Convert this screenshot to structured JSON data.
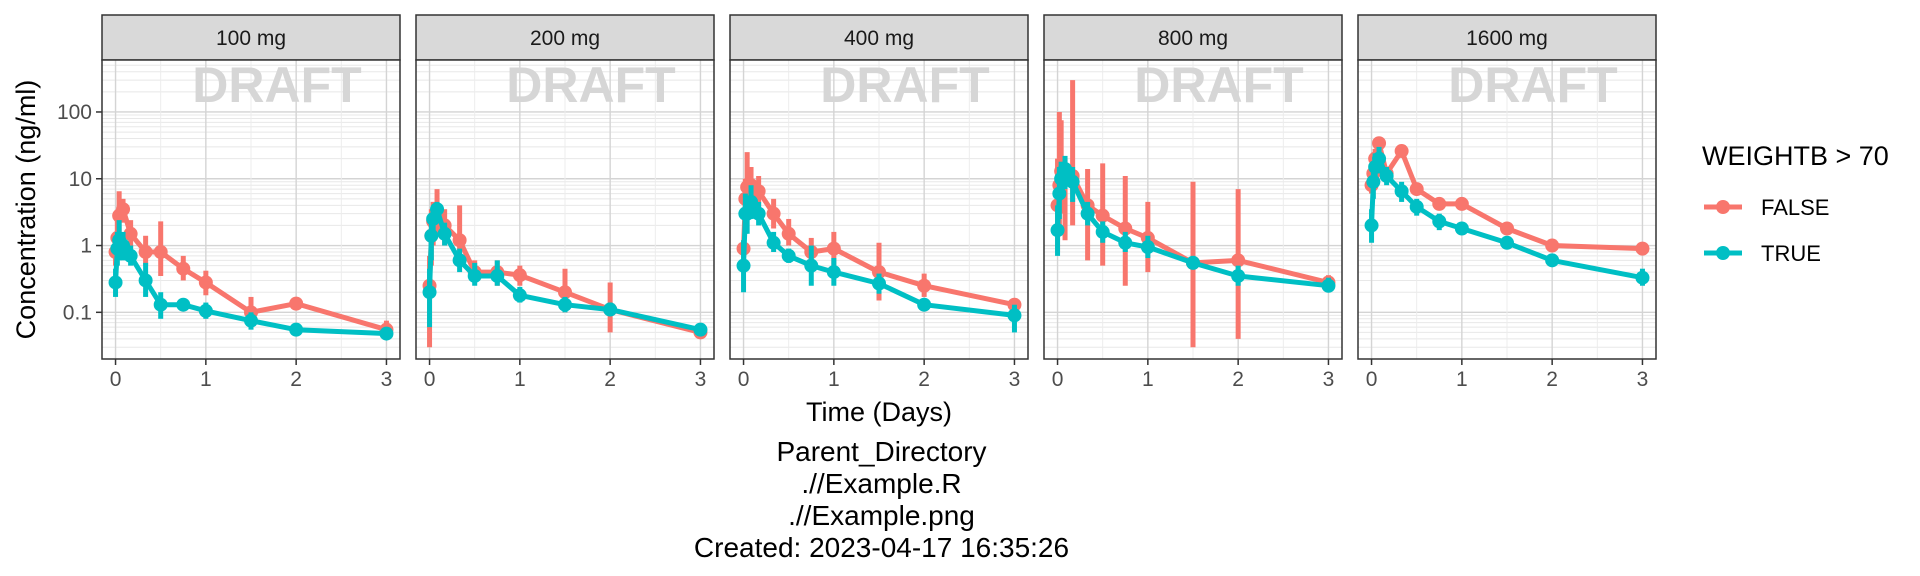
{
  "chart_data": {
    "type": "line",
    "facet_by": "dose",
    "facets": [
      "100 mg",
      "200 mg",
      "400 mg",
      "800 mg",
      "1600 mg"
    ],
    "xlabel": "Time (Days)",
    "ylabel": "Concentration (ng/ml)",
    "x_scale": "linear",
    "y_scale": "log10",
    "xlim": [
      -0.15,
      3.15
    ],
    "ylim": [
      0.02,
      600
    ],
    "x_ticks": [
      0,
      1,
      2,
      3
    ],
    "x_tick_labels": [
      "0",
      "1",
      "2",
      "3"
    ],
    "y_ticks": [
      0.1,
      1,
      10,
      100
    ],
    "y_tick_labels": [
      "0.1",
      "1",
      "10",
      "100"
    ],
    "grid": true,
    "watermark": "DRAFT",
    "legend": {
      "title": "WEIGHTB > 70",
      "position": "right",
      "entries": [
        "FALSE",
        "TRUE"
      ],
      "colors": [
        "#F8766D",
        "#00BFC4"
      ]
    },
    "series_data": [
      {
        "facet": "100 mg",
        "FALSE": [
          [
            0,
            0.8,
            0.5,
            1.3
          ],
          [
            0.02,
            1.3,
            0.7,
            2.4
          ],
          [
            0.04,
            2.8,
            1.2,
            6.5
          ],
          [
            0.083,
            3.5,
            2.2,
            5.0
          ],
          [
            0.167,
            1.5,
            0.9,
            2.4
          ],
          [
            0.333,
            0.8,
            0.5,
            1.4
          ],
          [
            0.5,
            0.8,
            0.35,
            2.3
          ],
          [
            0.75,
            0.45,
            0.3,
            0.7
          ],
          [
            1,
            0.28,
            0.18,
            0.42
          ],
          [
            1.5,
            0.1,
            0.07,
            0.17
          ],
          [
            2,
            0.135,
            0.12,
            0.15
          ],
          [
            3,
            0.055,
            0.045,
            0.075
          ]
        ],
        "TRUE": [
          [
            0,
            0.28,
            0.17,
            0.45
          ],
          [
            0.02,
            0.9,
            0.5,
            1.6
          ],
          [
            0.04,
            1.2,
            0.6,
            2.4
          ],
          [
            0.083,
            1.0,
            0.6,
            1.6
          ],
          [
            0.167,
            0.7,
            0.5,
            1.0
          ],
          [
            0.333,
            0.3,
            0.17,
            0.55
          ],
          [
            0.5,
            0.13,
            0.08,
            0.2
          ],
          [
            0.75,
            0.13,
            0.115,
            0.145
          ],
          [
            1,
            0.105,
            0.08,
            0.14
          ],
          [
            1.5,
            0.075,
            0.055,
            0.1
          ],
          [
            2,
            0.055,
            0.05,
            0.06
          ],
          [
            3,
            0.048,
            0.04,
            0.055
          ]
        ]
      },
      {
        "facet": "200 mg",
        "FALSE": [
          [
            0,
            0.25,
            0.03,
            0.7
          ],
          [
            0.02,
            1.4,
            0.5,
            3.5
          ],
          [
            0.04,
            2.3,
            1.0,
            4.5
          ],
          [
            0.083,
            3.2,
            1.5,
            7.0
          ],
          [
            0.167,
            2.0,
            1.0,
            3.5
          ],
          [
            0.333,
            1.2,
            0.5,
            4.0
          ],
          [
            0.5,
            0.4,
            0.3,
            0.6
          ],
          [
            0.75,
            0.4,
            0.25,
            0.6
          ],
          [
            1,
            0.36,
            0.25,
            0.5
          ],
          [
            1.5,
            0.2,
            0.1,
            0.45
          ],
          [
            2,
            0.11,
            0.05,
            0.28
          ],
          [
            3,
            0.05,
            0.045,
            0.055
          ]
        ],
        "TRUE": [
          [
            0,
            0.2,
            0.06,
            0.45
          ],
          [
            0.02,
            1.4,
            0.6,
            2.5
          ],
          [
            0.04,
            2.5,
            1.5,
            3.5
          ],
          [
            0.083,
            3.5,
            2.5,
            4.5
          ],
          [
            0.167,
            1.5,
            1.0,
            2.2
          ],
          [
            0.333,
            0.6,
            0.4,
            0.9
          ],
          [
            0.5,
            0.35,
            0.25,
            0.55
          ],
          [
            0.75,
            0.35,
            0.25,
            0.6
          ],
          [
            1,
            0.18,
            0.14,
            0.24
          ],
          [
            1.5,
            0.13,
            0.1,
            0.17
          ],
          [
            2,
            0.11,
            0.09,
            0.14
          ],
          [
            3,
            0.055,
            0.05,
            0.06
          ]
        ]
      },
      {
        "facet": "400 mg",
        "FALSE": [
          [
            0,
            0.9,
            0.7,
            1.2
          ],
          [
            0.02,
            5.0,
            2.0,
            10
          ],
          [
            0.04,
            7.5,
            3.0,
            25
          ],
          [
            0.083,
            8.0,
            4.0,
            15
          ],
          [
            0.167,
            6.5,
            3.5,
            11
          ],
          [
            0.333,
            3.0,
            1.8,
            5.0
          ],
          [
            0.5,
            1.5,
            1.0,
            2.5
          ],
          [
            0.75,
            0.8,
            0.5,
            1.3
          ],
          [
            1,
            0.9,
            0.5,
            1.6
          ],
          [
            1.5,
            0.4,
            0.15,
            1.1
          ],
          [
            2,
            0.25,
            0.17,
            0.38
          ],
          [
            3,
            0.13,
            0.11,
            0.16
          ]
        ],
        "TRUE": [
          [
            0,
            0.5,
            0.2,
            1.2
          ],
          [
            0.02,
            3.0,
            1.5,
            6.0
          ],
          [
            0.04,
            3.0,
            1.5,
            5.5
          ],
          [
            0.083,
            4.5,
            2.5,
            8.0
          ],
          [
            0.167,
            3.0,
            2.0,
            4.5
          ],
          [
            0.333,
            1.1,
            0.8,
            1.6
          ],
          [
            0.5,
            0.7,
            0.55,
            0.9
          ],
          [
            0.75,
            0.5,
            0.25,
            1.0
          ],
          [
            1,
            0.4,
            0.25,
            0.65
          ],
          [
            1.5,
            0.27,
            0.19,
            0.38
          ],
          [
            2,
            0.13,
            0.11,
            0.15
          ],
          [
            3,
            0.09,
            0.05,
            0.13
          ]
        ]
      },
      {
        "facet": "800 mg",
        "FALSE": [
          [
            0,
            4.0,
            0.8,
            20
          ],
          [
            0.02,
            8.0,
            2.0,
            100
          ],
          [
            0.04,
            13,
            3.0,
            75
          ],
          [
            0.083,
            11,
            1.2,
            20
          ],
          [
            0.167,
            11,
            2.0,
            300
          ],
          [
            0.333,
            4.0,
            0.6,
            14
          ],
          [
            0.5,
            2.8,
            0.5,
            17
          ],
          [
            0.75,
            1.8,
            0.25,
            11
          ],
          [
            1,
            1.3,
            0.4,
            4.5
          ],
          [
            1.5,
            0.55,
            0.03,
            9.0
          ],
          [
            2,
            0.6,
            0.04,
            7.0
          ],
          [
            3,
            0.28,
            0.22,
            0.36
          ]
        ],
        "TRUE": [
          [
            0,
            1.7,
            0.7,
            4.0
          ],
          [
            0.02,
            6.0,
            2.5,
            15
          ],
          [
            0.04,
            10,
            5.0,
            18
          ],
          [
            0.083,
            14,
            7.0,
            22
          ],
          [
            0.167,
            9.0,
            4.5,
            15
          ],
          [
            0.333,
            3.0,
            2.0,
            4.5
          ],
          [
            0.5,
            1.6,
            1.1,
            2.3
          ],
          [
            0.75,
            1.1,
            0.8,
            1.6
          ],
          [
            1,
            0.95,
            0.65,
            1.4
          ],
          [
            1.5,
            0.55,
            0.45,
            0.7
          ],
          [
            2,
            0.35,
            0.25,
            0.5
          ],
          [
            3,
            0.25,
            0.2,
            0.33
          ]
        ]
      },
      {
        "facet": "1600 mg",
        "FALSE": [
          [
            0,
            8.0,
            6.0,
            11
          ],
          [
            0.02,
            12,
            9.0,
            17
          ],
          [
            0.04,
            20,
            14,
            28
          ],
          [
            0.083,
            34,
            28,
            40
          ],
          [
            0.167,
            12,
            9.0,
            15
          ],
          [
            0.333,
            26,
            22,
            30
          ],
          [
            0.5,
            7.0,
            6.0,
            8.0
          ],
          [
            0.75,
            4.2,
            3.5,
            5.0
          ],
          [
            1,
            4.2,
            3.5,
            5.0
          ],
          [
            1.5,
            1.8,
            1.5,
            2.2
          ],
          [
            2,
            1.0,
            0.9,
            1.1
          ],
          [
            3,
            0.9,
            0.85,
            0.95
          ]
        ],
        "TRUE": [
          [
            0,
            2.0,
            1.1,
            3.5
          ],
          [
            0.02,
            9.0,
            5.0,
            15
          ],
          [
            0.04,
            15,
            8.0,
            24
          ],
          [
            0.083,
            20,
            12,
            30
          ],
          [
            0.167,
            11,
            8.0,
            15
          ],
          [
            0.333,
            6.5,
            4.5,
            9.0
          ],
          [
            0.5,
            3.8,
            2.8,
            5.0
          ],
          [
            0.75,
            2.3,
            1.7,
            3.0
          ],
          [
            1,
            1.8,
            1.5,
            2.2
          ],
          [
            1.5,
            1.1,
            0.9,
            1.35
          ],
          [
            2,
            0.6,
            0.5,
            0.75
          ],
          [
            3,
            0.33,
            0.25,
            0.45
          ]
        ]
      }
    ]
  },
  "caption": {
    "lines": [
      "Parent_Directory",
      ".//Example.R",
      ".//Example.png",
      "Created: 2023-04-17 16:35:26"
    ]
  }
}
